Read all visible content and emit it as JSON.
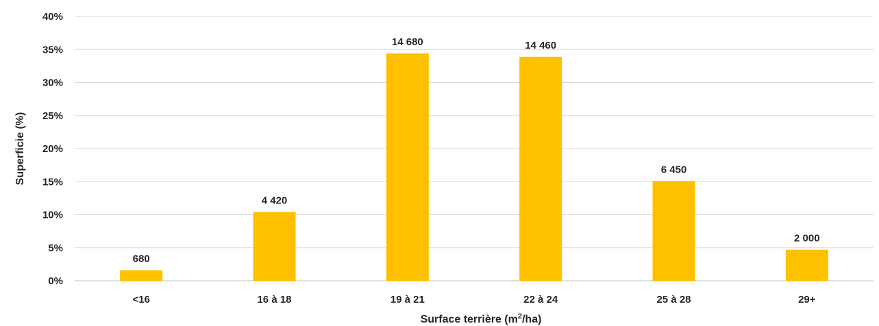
{
  "chart_data": {
    "type": "bar",
    "categories": [
      "<16",
      "16 à 18",
      "19 à 21",
      "22 à 24",
      "25 à 28",
      "29+"
    ],
    "values": [
      1.6,
      10.4,
      34.4,
      33.9,
      15.1,
      4.7
    ],
    "data_labels": [
      "680",
      "4 420",
      "14 680",
      "14 460",
      "6 450",
      "2 000"
    ],
    "title": "",
    "xlabel": "Surface terrière (m²/ha)",
    "ylabel": "Superficie (%)",
    "ylim": [
      0,
      40
    ],
    "yticks": [
      "0%",
      "5%",
      "10%",
      "15%",
      "20%",
      "25%",
      "30%",
      "35%",
      "40%"
    ],
    "grid": true,
    "legend": "none",
    "bar_color": "#FFC000",
    "gridline_color": "#d9d9d9"
  }
}
